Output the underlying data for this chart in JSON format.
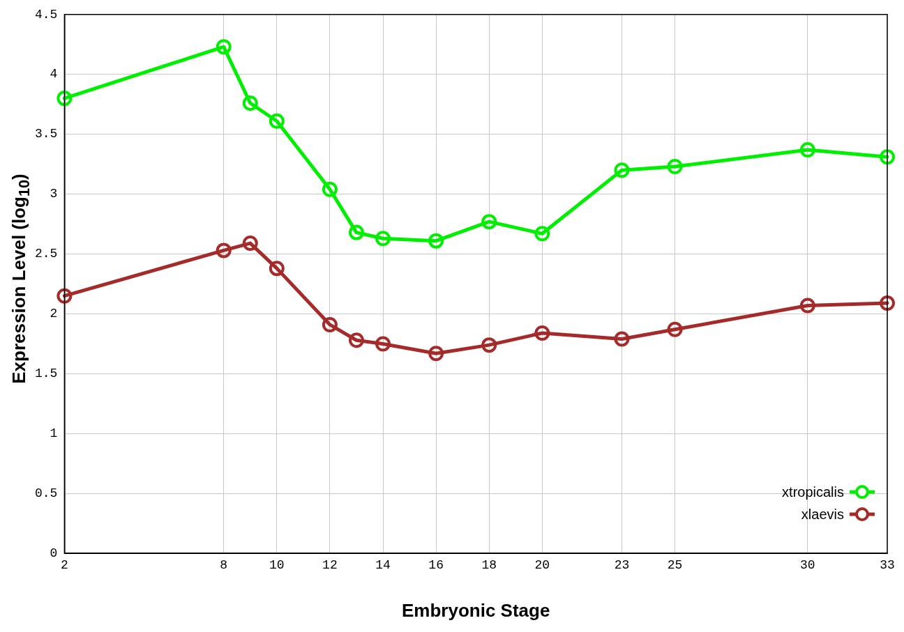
{
  "chart_data": {
    "type": "line",
    "xlabel": "Embryonic Stage",
    "ylabel": "Expression Level (log$_{10}$)",
    "xlim": [
      2,
      33
    ],
    "xticks": [
      2,
      8,
      10,
      12,
      14,
      16,
      18,
      20,
      23,
      25,
      30,
      33
    ],
    "ylim": [
      0,
      4.5
    ],
    "yticks": [
      0,
      0.5,
      1,
      1.5,
      2,
      2.5,
      3,
      3.5,
      4,
      4.5
    ],
    "grid": true,
    "legend": "bottom right",
    "marker": "circle",
    "line_style": "solid",
    "x": [
      2,
      8,
      9,
      10,
      12,
      13,
      14,
      16,
      18,
      20,
      23,
      25,
      30,
      33
    ],
    "series": [
      {
        "name": "xtropicalis",
        "color": "#00ee00",
        "values": [
          3.8,
          4.23,
          3.76,
          3.61,
          3.04,
          2.68,
          2.63,
          2.61,
          2.77,
          2.67,
          3.2,
          3.23,
          3.37,
          3.31
        ]
      },
      {
        "name": "xlaevis",
        "color": "#a52a2a",
        "values": [
          2.15,
          2.53,
          2.59,
          2.38,
          1.91,
          1.78,
          1.75,
          1.67,
          1.74,
          1.84,
          1.79,
          1.87,
          2.07,
          2.09
        ]
      }
    ]
  }
}
